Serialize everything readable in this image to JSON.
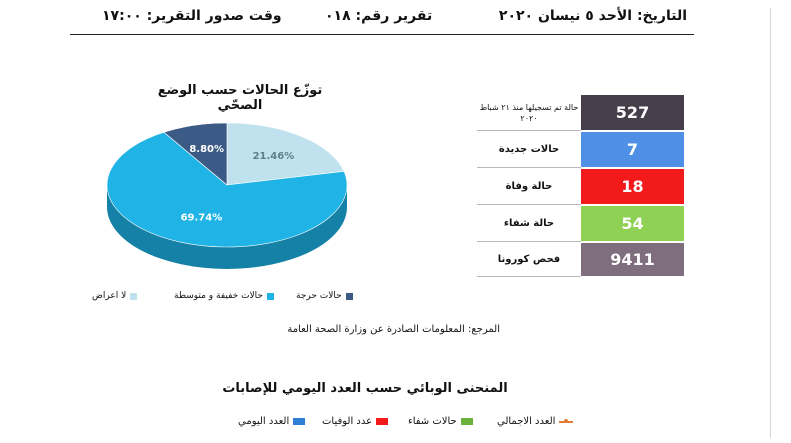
{
  "header": {
    "date": "التاريخ: الأحد ٥ نيسان ٢٠٢٠",
    "report_number": "تقرير رقم: ٠١٨",
    "report_time": "وقت صدور التقرير: ١٧:٠٠"
  },
  "stats": [
    {
      "label": "حالة تم تسجيلها منذ ٢١ شباط ٢٠٢٠",
      "value": "527",
      "color": "#463e4a",
      "small": true
    },
    {
      "label": "حالات جديدة",
      "value": "7",
      "color": "#4f8fe6",
      "small": false
    },
    {
      "label": "حالة وفاة",
      "value": "18",
      "color": "#f21a1a",
      "small": false
    },
    {
      "label": "حالة شفاء",
      "value": "54",
      "color": "#8fd155",
      "small": false
    },
    {
      "label": "فحص كورونا",
      "value": "9411",
      "color": "#7f6e7e",
      "small": false
    }
  ],
  "pie": {
    "title": "توزّع الحالات حسب الوضع الصحّي",
    "legend": {
      "critical": "حالات حرجة",
      "mild": "حالات خفيفة و متوسطة",
      "asymptomatic": "لا اعراض"
    }
  },
  "chart_data": {
    "type": "pie",
    "title": "توزّع الحالات حسب الوضع الصحّي",
    "slices": [
      {
        "name": "لا اعراض",
        "value": 21.46,
        "label": "21.46%",
        "color": "#bfe2ee"
      },
      {
        "name": "حالات خفيفة و متوسطة",
        "value": 69.74,
        "label": "69.74%",
        "color": "#1fb3e6"
      },
      {
        "name": "حالات حرجة",
        "value": 8.8,
        "label": "8.80%",
        "color": "#3c5a86"
      }
    ]
  },
  "reference": "المرجع: المعلومات الصادرة عن وزارة الصحة العامة",
  "curve": {
    "title": "المنحنى الوبائي حسب العدد اليومي للإصابات",
    "legend": {
      "total": "العدد الاجمالي",
      "recovered": "حالات شفاء",
      "deaths": "عدد الوفيات",
      "daily": "العدد اليومي"
    }
  }
}
